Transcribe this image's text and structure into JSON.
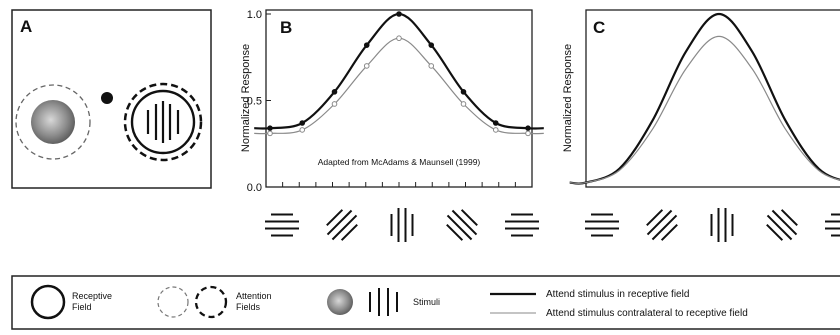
{
  "panels": {
    "a": {
      "letter": "A"
    },
    "b": {
      "letter": "B"
    },
    "c": {
      "letter": "C"
    }
  },
  "chart_data": [
    {
      "type": "line",
      "panel": "B",
      "ylabel": "Normalized Response",
      "xlabel": "",
      "ylim": [
        0,
        1.0
      ],
      "yticks": [
        {
          "value": 0.0,
          "label": "0.0"
        },
        {
          "value": 0.5,
          "label": "0.5"
        },
        {
          "value": 1.0,
          "label": "1.0"
        }
      ],
      "annotation": "Adapted from McAdams & Maunsell (1999)",
      "x": [
        -90,
        -67.5,
        -45,
        -22.5,
        0,
        22.5,
        45,
        67.5,
        90
      ],
      "series": [
        {
          "style": "solid-dark",
          "marker": "filled-circle",
          "values": [
            0.34,
            0.37,
            0.55,
            0.82,
            1.0,
            0.82,
            0.55,
            0.37,
            0.34
          ]
        },
        {
          "style": "thin-grey",
          "marker": "open-circle",
          "values": [
            0.31,
            0.33,
            0.48,
            0.7,
            0.86,
            0.7,
            0.48,
            0.33,
            0.31
          ]
        }
      ]
    },
    {
      "type": "line",
      "panel": "C",
      "ylabel": "Normalized Response",
      "xlabel": "",
      "ylim": [
        0,
        1.0
      ],
      "x": [
        -90,
        -67.5,
        -45,
        -22.5,
        0,
        22.5,
        45,
        67.5,
        90
      ],
      "series": [
        {
          "style": "solid-dark",
          "values": [
            0.02,
            0.1,
            0.38,
            0.78,
            1.0,
            0.78,
            0.38,
            0.1,
            0.02
          ]
        },
        {
          "style": "thin-grey",
          "values": [
            0.02,
            0.09,
            0.33,
            0.68,
            0.87,
            0.68,
            0.33,
            0.09,
            0.02
          ]
        }
      ]
    }
  ],
  "orientations_deg": [
    0,
    -45,
    90,
    45,
    0
  ],
  "legend": {
    "receptive_field": [
      "Receptive",
      "Field"
    ],
    "attention_fields": [
      "Attention",
      "Fields"
    ],
    "stimuli": "Stimuli",
    "line_attend_in": "Attend stimulus in receptive field",
    "line_attend_contra": "Attend stimulus contralateral to receptive field"
  },
  "colors": {
    "ink": "#111111",
    "grey": "#8a8a8a",
    "frame": "#222222"
  }
}
